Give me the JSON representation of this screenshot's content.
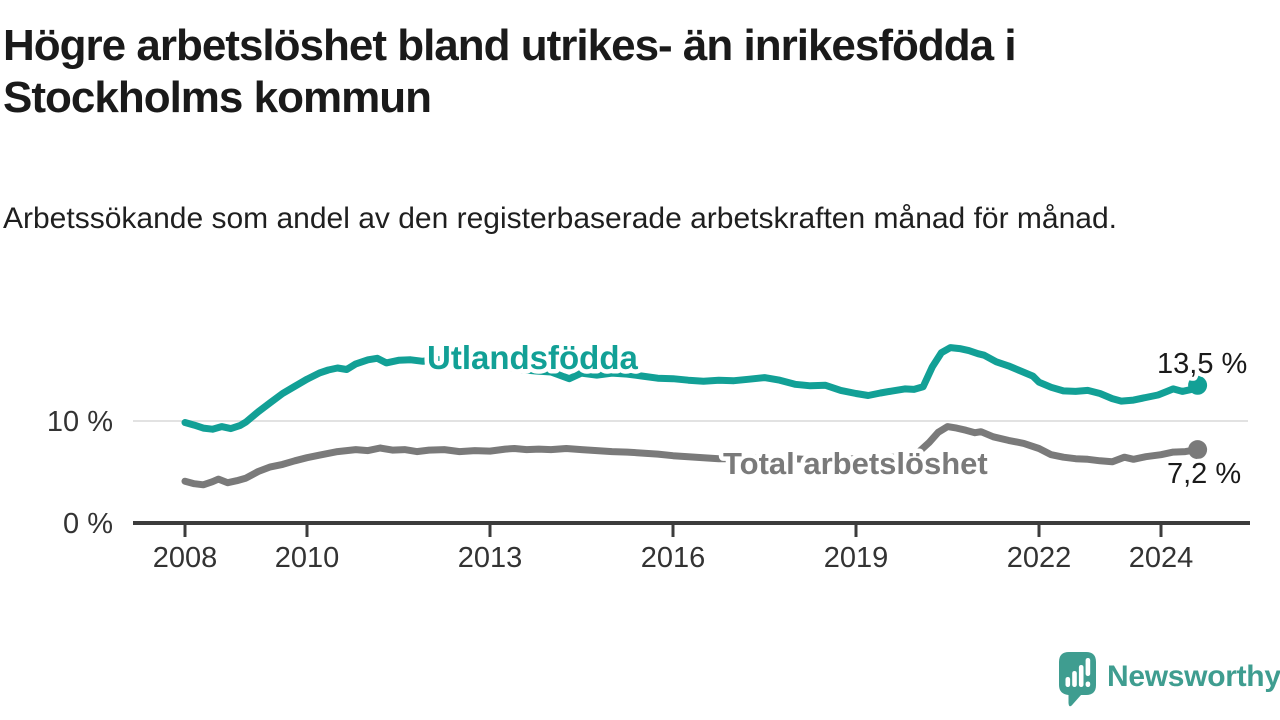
{
  "header": {
    "title": "Högre arbetslöshet bland utrikes- än inrikesfödda i Stockholms kommun",
    "subtitle": "Arbetssökande som andel av den registerbaserade arbetskraften månad för månad."
  },
  "chart_data": {
    "type": "line",
    "title": "Högre arbetslöshet bland utrikes- än inrikesfödda i Stockholms kommun",
    "subtitle": "Arbetssökande som andel av den registerbaserade arbetskraften månad för månad.",
    "unit": "%",
    "x_axis": {
      "label": "",
      "range": [
        2007.2,
        2025.4
      ],
      "ticks": [
        {
          "year": 2008,
          "label": "2008"
        },
        {
          "year": 2010,
          "label": "2010"
        },
        {
          "year": 2013,
          "label": "2013"
        },
        {
          "year": 2016,
          "label": "2016"
        },
        {
          "year": 2019,
          "label": "2019"
        },
        {
          "year": 2022,
          "label": "2022"
        },
        {
          "year": 2024,
          "label": "2024"
        }
      ]
    },
    "y_axis": {
      "label": "",
      "range": [
        0,
        18.5
      ],
      "ticks": [
        {
          "value": 0,
          "label": "0 %"
        },
        {
          "value": 10,
          "label": "10 %"
        }
      ],
      "gridlines_at": [
        10
      ]
    },
    "legend_position": "inline-labels",
    "series": [
      {
        "name": "Utlandsfödda",
        "color": "#12A096",
        "end_label": "13,5 %",
        "end_value": 13.5,
        "points": [
          [
            2008.0,
            9.85
          ],
          [
            2008.15,
            9.6
          ],
          [
            2008.3,
            9.3
          ],
          [
            2008.45,
            9.2
          ],
          [
            2008.6,
            9.45
          ],
          [
            2008.75,
            9.25
          ],
          [
            2008.9,
            9.55
          ],
          [
            2009.0,
            9.9
          ],
          [
            2009.2,
            10.9
          ],
          [
            2009.4,
            11.8
          ],
          [
            2009.6,
            12.7
          ],
          [
            2009.8,
            13.4
          ],
          [
            2010.0,
            14.1
          ],
          [
            2010.2,
            14.7
          ],
          [
            2010.35,
            15.0
          ],
          [
            2010.5,
            15.2
          ],
          [
            2010.65,
            15.05
          ],
          [
            2010.8,
            15.6
          ],
          [
            2011.0,
            16.0
          ],
          [
            2011.15,
            16.15
          ],
          [
            2011.3,
            15.7
          ],
          [
            2011.5,
            15.95
          ],
          [
            2011.7,
            16.0
          ],
          [
            2011.9,
            15.85
          ],
          [
            2012.1,
            16.1
          ],
          [
            2012.3,
            15.8
          ],
          [
            2012.5,
            15.7
          ],
          [
            2012.7,
            15.85
          ],
          [
            2012.9,
            15.6
          ],
          [
            2013.1,
            15.4
          ],
          [
            2013.3,
            15.2
          ],
          [
            2013.5,
            15.05
          ],
          [
            2013.75,
            14.9
          ],
          [
            2014.0,
            14.8
          ],
          [
            2014.3,
            14.15
          ],
          [
            2014.5,
            14.7
          ],
          [
            2014.75,
            14.5
          ],
          [
            2015.0,
            14.7
          ],
          [
            2015.25,
            14.6
          ],
          [
            2015.5,
            14.4
          ],
          [
            2015.75,
            14.2
          ],
          [
            2016.0,
            14.15
          ],
          [
            2016.25,
            14.0
          ],
          [
            2016.5,
            13.9
          ],
          [
            2016.75,
            14.0
          ],
          [
            2017.0,
            13.95
          ],
          [
            2017.25,
            14.1
          ],
          [
            2017.5,
            14.25
          ],
          [
            2017.75,
            14.0
          ],
          [
            2018.0,
            13.6
          ],
          [
            2018.25,
            13.45
          ],
          [
            2018.5,
            13.5
          ],
          [
            2018.75,
            13.0
          ],
          [
            2019.0,
            12.7
          ],
          [
            2019.2,
            12.5
          ],
          [
            2019.4,
            12.75
          ],
          [
            2019.6,
            12.95
          ],
          [
            2019.8,
            13.15
          ],
          [
            2019.95,
            13.1
          ],
          [
            2020.1,
            13.35
          ],
          [
            2020.25,
            15.3
          ],
          [
            2020.4,
            16.7
          ],
          [
            2020.55,
            17.2
          ],
          [
            2020.7,
            17.1
          ],
          [
            2020.85,
            16.9
          ],
          [
            2021.0,
            16.6
          ],
          [
            2021.1,
            16.45
          ],
          [
            2021.3,
            15.8
          ],
          [
            2021.5,
            15.4
          ],
          [
            2021.7,
            14.9
          ],
          [
            2021.9,
            14.4
          ],
          [
            2022.0,
            13.8
          ],
          [
            2022.2,
            13.3
          ],
          [
            2022.4,
            12.95
          ],
          [
            2022.6,
            12.9
          ],
          [
            2022.8,
            13.0
          ],
          [
            2023.0,
            12.7
          ],
          [
            2023.2,
            12.2
          ],
          [
            2023.35,
            11.95
          ],
          [
            2023.55,
            12.05
          ],
          [
            2023.75,
            12.3
          ],
          [
            2023.95,
            12.55
          ],
          [
            2024.1,
            12.9
          ],
          [
            2024.2,
            13.15
          ],
          [
            2024.35,
            12.9
          ],
          [
            2024.5,
            13.1
          ],
          [
            2024.6,
            13.5
          ]
        ]
      },
      {
        "name": "Total arbetslöshet",
        "color": "#7A7A7A",
        "end_label": "7,2 %",
        "end_value": 7.2,
        "points": [
          [
            2008.0,
            4.1
          ],
          [
            2008.15,
            3.85
          ],
          [
            2008.3,
            3.75
          ],
          [
            2008.45,
            4.05
          ],
          [
            2008.55,
            4.3
          ],
          [
            2008.7,
            3.95
          ],
          [
            2008.85,
            4.15
          ],
          [
            2009.0,
            4.4
          ],
          [
            2009.2,
            5.05
          ],
          [
            2009.4,
            5.5
          ],
          [
            2009.6,
            5.75
          ],
          [
            2009.8,
            6.1
          ],
          [
            2010.0,
            6.4
          ],
          [
            2010.2,
            6.65
          ],
          [
            2010.5,
            7.0
          ],
          [
            2010.8,
            7.2
          ],
          [
            2011.0,
            7.1
          ],
          [
            2011.2,
            7.35
          ],
          [
            2011.4,
            7.15
          ],
          [
            2011.6,
            7.2
          ],
          [
            2011.8,
            7.0
          ],
          [
            2012.0,
            7.15
          ],
          [
            2012.25,
            7.2
          ],
          [
            2012.5,
            7.0
          ],
          [
            2012.75,
            7.1
          ],
          [
            2013.0,
            7.05
          ],
          [
            2013.25,
            7.25
          ],
          [
            2013.4,
            7.3
          ],
          [
            2013.6,
            7.2
          ],
          [
            2013.8,
            7.25
          ],
          [
            2014.0,
            7.2
          ],
          [
            2014.25,
            7.3
          ],
          [
            2014.5,
            7.2
          ],
          [
            2014.75,
            7.1
          ],
          [
            2015.0,
            7.0
          ],
          [
            2015.25,
            6.95
          ],
          [
            2015.5,
            6.85
          ],
          [
            2015.75,
            6.75
          ],
          [
            2016.0,
            6.6
          ],
          [
            2016.25,
            6.5
          ],
          [
            2016.5,
            6.4
          ],
          [
            2016.75,
            6.3
          ],
          [
            2017.0,
            6.3
          ],
          [
            2017.25,
            6.4
          ],
          [
            2017.5,
            6.3
          ],
          [
            2017.75,
            6.25
          ],
          [
            2018.0,
            6.3
          ],
          [
            2018.25,
            6.2
          ],
          [
            2018.5,
            6.3
          ],
          [
            2018.75,
            6.25
          ],
          [
            2019.0,
            6.3
          ],
          [
            2019.25,
            6.3
          ],
          [
            2019.5,
            6.4
          ],
          [
            2019.75,
            6.5
          ],
          [
            2020.0,
            6.8
          ],
          [
            2020.2,
            7.9
          ],
          [
            2020.35,
            8.9
          ],
          [
            2020.5,
            9.45
          ],
          [
            2020.65,
            9.3
          ],
          [
            2020.8,
            9.1
          ],
          [
            2020.95,
            8.85
          ],
          [
            2021.05,
            8.95
          ],
          [
            2021.25,
            8.45
          ],
          [
            2021.5,
            8.1
          ],
          [
            2021.75,
            7.8
          ],
          [
            2022.0,
            7.3
          ],
          [
            2022.2,
            6.7
          ],
          [
            2022.4,
            6.45
          ],
          [
            2022.6,
            6.3
          ],
          [
            2022.8,
            6.25
          ],
          [
            2023.0,
            6.1
          ],
          [
            2023.2,
            6.0
          ],
          [
            2023.4,
            6.45
          ],
          [
            2023.55,
            6.25
          ],
          [
            2023.75,
            6.5
          ],
          [
            2024.0,
            6.7
          ],
          [
            2024.2,
            6.95
          ],
          [
            2024.4,
            7.0
          ],
          [
            2024.6,
            7.2
          ]
        ]
      }
    ],
    "colors": {
      "accent_teal": "#12A096",
      "line_gray": "#7A7A7A",
      "axis": "#3C3C3C",
      "gridline": "#E2E2E2"
    }
  },
  "logo": {
    "wordmark": "Newsworthy",
    "color": "#3F9D90",
    "icon": "newsworthy-speech-bubble-bar-chart-icon"
  }
}
